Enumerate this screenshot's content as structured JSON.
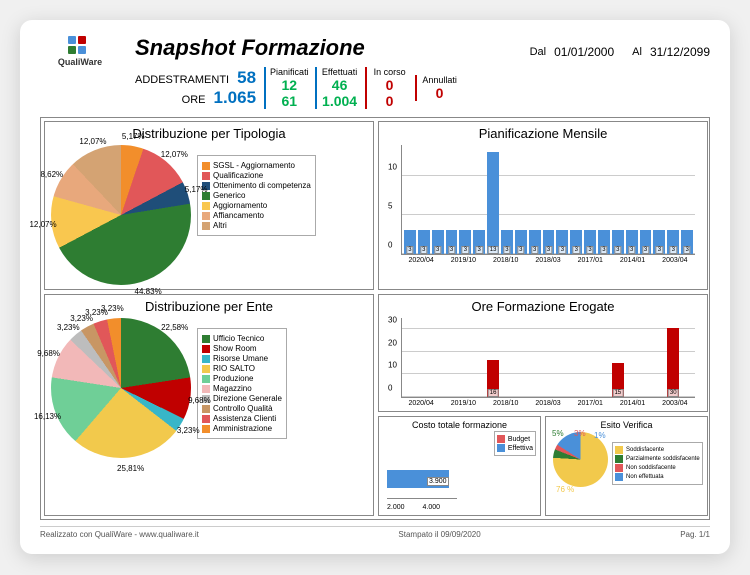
{
  "header": {
    "title": "Snapshot Formazione",
    "logo_text": "QualiWare",
    "date_from_label": "Dal",
    "date_from": "01/01/2000",
    "date_to_label": "Al",
    "date_to": "31/12/2099"
  },
  "stats": {
    "addestramenti_label": "ADDESTRAMENTI",
    "addestramenti": "58",
    "ore_label": "ORE",
    "ore": "1.065",
    "pianificati_label": "Pianificati",
    "pianificati_a": "12",
    "pianificati_o": "61",
    "effettuati_label": "Effettuati",
    "effettuati_a": "46",
    "effettuati_o": "1.004",
    "incorso_label": "In corso",
    "incorso_a": "0",
    "incorso_o": "0",
    "annullati_label": "Annullati",
    "annullati_a": "0",
    "color_blue": "#0070c0",
    "color_green": "#00b050",
    "color_red": "#c00000"
  },
  "distribuzione_tipologia": {
    "title": "Distribuzione per Tipologia",
    "slices": [
      {
        "label": "SGSL - Aggiornamento",
        "pct": 5.17,
        "color": "#f28e2b"
      },
      {
        "label": "Qualificazione",
        "pct": 12.07,
        "color": "#e15759"
      },
      {
        "label": "Ottenimento di competenza",
        "pct": 5.17,
        "color": "#1f4e79"
      },
      {
        "label": "Generico",
        "pct": 44.83,
        "color": "#2e7d32"
      },
      {
        "label": "Aggiornamento",
        "pct": 12.07,
        "color": "#f9c74f"
      },
      {
        "label": "Affiancamento",
        "pct": 8.62,
        "color": "#e8a87c"
      },
      {
        "label": "Altri",
        "pct": 12.07,
        "color": "#d4a373"
      }
    ]
  },
  "distribuzione_ente": {
    "title": "Distribuzione per Ente",
    "slices": [
      {
        "label": "Ufficio Tecnico",
        "pct": 22.58,
        "color": "#2e7d32"
      },
      {
        "label": "Show Room",
        "pct": 9.68,
        "color": "#c00000"
      },
      {
        "label": "Risorse Umane",
        "pct": 3.23,
        "color": "#38b6c8"
      },
      {
        "label": "RIO SALTO",
        "pct": 25.81,
        "color": "#f2c94c"
      },
      {
        "label": "Produzione",
        "pct": 16.13,
        "color": "#6fcf97"
      },
      {
        "label": "Magazzino",
        "pct": 9.68,
        "color": "#f2b8b8"
      },
      {
        "label": "Direzione Generale",
        "pct": 3.23,
        "color": "#bdbdbd"
      },
      {
        "label": "Controllo Qualità",
        "pct": 3.23,
        "color": "#c89664"
      },
      {
        "label": "Assistenza Clienti",
        "pct": 3.23,
        "color": "#e15759"
      },
      {
        "label": "Amministrazione",
        "pct": 3.23,
        "color": "#f28e2b"
      }
    ]
  },
  "pianificazione_mensile": {
    "title": "Pianificazione Mensile",
    "ymax": 14,
    "yticks": [
      0,
      5,
      10
    ],
    "color": "#4a90d9",
    "x_labels": [
      "2020/04",
      "2019/10",
      "2018/10",
      "2018/03",
      "2017/01",
      "2014/01",
      "2003/04"
    ],
    "values": [
      3,
      3,
      3,
      3,
      3,
      3,
      13,
      3,
      3,
      3,
      3,
      3,
      3,
      3,
      3,
      3,
      3,
      3,
      3,
      3,
      3
    ]
  },
  "ore_erogate": {
    "title": "Ore Formazione Erogate",
    "ymax": 35,
    "yticks": [
      0,
      10,
      20,
      30
    ],
    "color": "#c00000",
    "x_labels": [
      "2020/04",
      "2019/10",
      "2018/10",
      "2018/03",
      "2017/01",
      "2014/01",
      "2003/04"
    ],
    "bars": [
      {
        "pos": 6,
        "val": 16
      },
      {
        "pos": 15,
        "val": 15
      },
      {
        "pos": 19,
        "val": 30
      }
    ],
    "n_slots": 21
  },
  "costo": {
    "title": "Costo totale formazione",
    "legend": [
      {
        "label": "Budget",
        "color": "#e15759"
      },
      {
        "label": "Effettiva",
        "color": "#4a90d9"
      }
    ],
    "value": "3.900",
    "xticks": [
      "2.000",
      "4.000"
    ]
  },
  "esito": {
    "title": "Esito Verifica",
    "slices": [
      {
        "label": "Soddisfacente",
        "pct": 76,
        "color": "#f2c94c"
      },
      {
        "label": "Parzialmente soddisfacente",
        "pct": 5,
        "color": "#2e7d32"
      },
      {
        "label": "Non soddisfacente",
        "pct": 3,
        "color": "#e15759"
      },
      {
        "label": "Non effettuata",
        "pct": 1,
        "color": "#4a90d9"
      }
    ]
  },
  "footer": {
    "left": "Realizzato con QualiWare - www.qualiware.it",
    "center": "Stampato il 09/09/2020",
    "right": "Pag. 1/1"
  }
}
